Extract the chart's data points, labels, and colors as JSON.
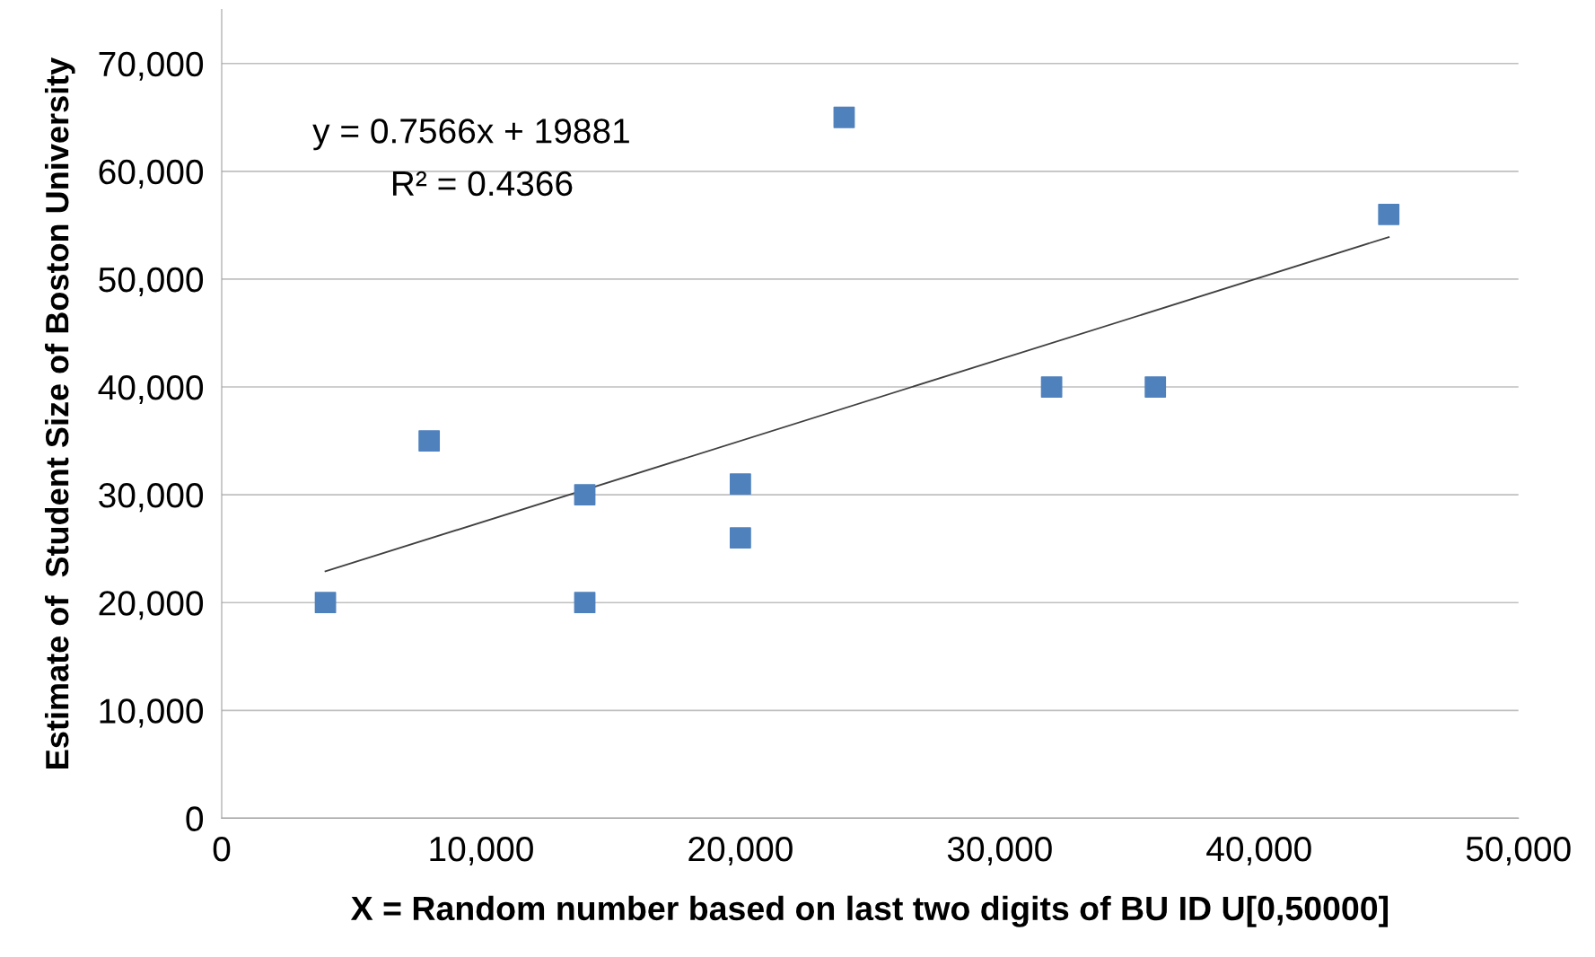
{
  "chart_data": {
    "type": "scatter",
    "xlabel": "X = Random number based on last two digits of BU ID U[0,50000]",
    "ylabel": "Estimate of  Student Size of Boston University",
    "series": [
      {
        "color": "#4f81bd",
        "marker": "square",
        "x": [
          4000,
          8000,
          14000,
          14000,
          20000,
          20000,
          24000,
          32000,
          36000,
          45000
        ],
        "values": [
          20000,
          35000,
          30000,
          20000,
          31000,
          26000,
          65000,
          40000,
          40000,
          56000
        ]
      },
      {
        "type": "line",
        "color": "#404040",
        "marker": "none",
        "line_style": "solid",
        "x": [
          4000,
          45000
        ],
        "values": [
          22900,
          53900
        ]
      }
    ],
    "annotations": [
      "y = 0.7566x + 19881",
      "R² = 0.4366"
    ],
    "xlim": [
      0,
      50000
    ],
    "ylim": [
      0,
      75000
    ],
    "xticks": [
      0,
      {
        "value": 10000,
        "label": "10,000"
      },
      {
        "value": 20000,
        "label": "20,000"
      },
      {
        "value": 30000,
        "label": "30,000"
      },
      {
        "value": 40000,
        "label": "40,000"
      },
      {
        "value": 50000,
        "label": "50,000"
      }
    ],
    "yticks": [
      0,
      {
        "value": 10000,
        "label": "10,000"
      },
      {
        "value": 20000,
        "label": "20,000"
      },
      {
        "value": 30000,
        "label": "30,000"
      },
      {
        "value": 40000,
        "label": "40,000"
      },
      {
        "value": 50000,
        "label": "50,000"
      },
      {
        "value": 60000,
        "label": "60,000"
      },
      {
        "value": 70000,
        "label": "70,000"
      }
    ],
    "grid": "y",
    "legend": false
  }
}
